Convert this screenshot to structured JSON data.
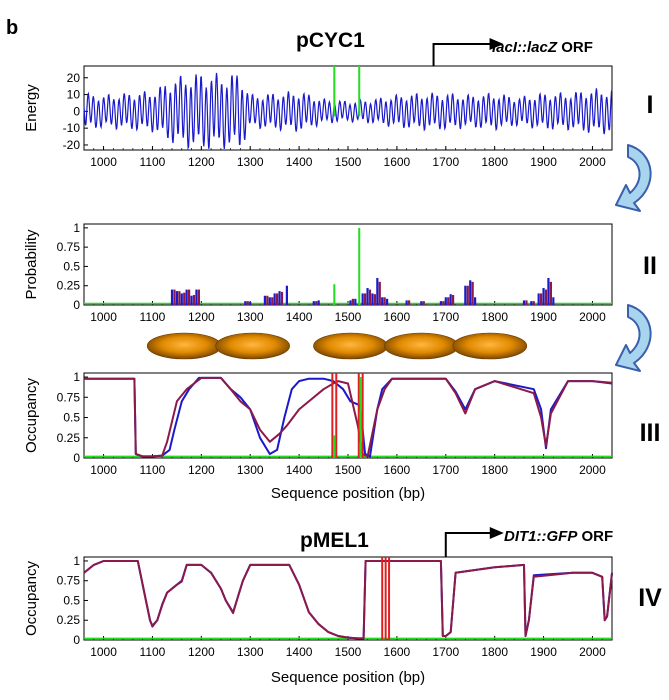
{
  "panel_letter": "b",
  "x_range": [
    960,
    2040
  ],
  "x_ticks": [
    1000,
    1100,
    1200,
    1300,
    1400,
    1500,
    1600,
    1700,
    1800,
    1900,
    2000
  ],
  "colors": {
    "blue": "#1a1acc",
    "purple": "#8b1a4a",
    "green": "#22dd22",
    "red": "#e02020",
    "arrow_dark": "#3a5fae",
    "arrow_light": "#a8d4ee",
    "nucleosome": "#c87800"
  },
  "top_label": {
    "promoter": "pCYC1",
    "orf": "lacI::lacZ ORF",
    "orf_italic": "lacI::lacZ",
    "orf_suffix": " ORF",
    "tss_bp": 1675
  },
  "bottom_label": {
    "promoter": "pMEL1",
    "orf": "DIT1::GFP ORF",
    "orf_italic": "DIT1::GFP",
    "orf_suffix": " ORF",
    "tss_bp": 1700
  },
  "nucleosomes_bp": [
    1165,
    1305,
    1505,
    1650,
    1790
  ],
  "chart_data": [
    {
      "id": "I",
      "type": "line",
      "roman": "I",
      "ylabel": "Energy",
      "xlabel": "",
      "ylim": [
        -23,
        27
      ],
      "y_ticks": [
        20,
        10,
        0,
        -10,
        -20
      ],
      "series": [
        {
          "name": "energy",
          "color": "blue",
          "x": [
            960,
            1000,
            1050,
            1100,
            1150,
            1200,
            1250,
            1280,
            1300,
            1350,
            1400,
            1450,
            1500,
            1550,
            1600,
            1650,
            1700,
            1750,
            1800,
            1850,
            1900,
            1950,
            2000,
            2040
          ],
          "amplitude": [
            9,
            8,
            9,
            10,
            17,
            19,
            18,
            19,
            8,
            9,
            10,
            6,
            5,
            6,
            8,
            9,
            9,
            8,
            9,
            7,
            9,
            9,
            11,
            11
          ],
          "period_bp": 10.5
        }
      ],
      "markers": [
        {
          "x": 1472,
          "color": "green"
        },
        {
          "x": 1523,
          "color": "green"
        }
      ]
    },
    {
      "id": "II",
      "type": "bar",
      "roman": "II",
      "ylabel": "Probability",
      "xlabel": "",
      "ylim": [
        0,
        1.05
      ],
      "y_ticks": [
        1,
        0.75,
        0.5,
        0.25,
        0
      ],
      "y_tick_labels": [
        "1",
        "0.75",
        "0.5",
        "0.25",
        "0"
      ],
      "baseline": {
        "value": 0.02,
        "color": "green"
      },
      "series": [
        {
          "name": "blue",
          "color": "blue",
          "x": [
            1140,
            1150,
            1160,
            1170,
            1180,
            1190,
            1290,
            1300,
            1330,
            1340,
            1350,
            1360,
            1375,
            1430,
            1440,
            1505,
            1515,
            1530,
            1540,
            1550,
            1560,
            1570,
            1580,
            1620,
            1650,
            1690,
            1700,
            1710,
            1740,
            1750,
            1760,
            1860,
            1875,
            1890,
            1900,
            1910,
            1920
          ],
          "values": [
            0.2,
            0.18,
            0.15,
            0.2,
            0.12,
            0.2,
            0.05,
            0.04,
            0.12,
            0.1,
            0.15,
            0.18,
            0.25,
            0.05,
            0.06,
            0.06,
            0.08,
            0.15,
            0.22,
            0.15,
            0.35,
            0.1,
            0.08,
            0.06,
            0.05,
            0.05,
            0.1,
            0.14,
            0.25,
            0.32,
            0.1,
            0.06,
            0.05,
            0.15,
            0.22,
            0.35,
            0.1
          ]
        },
        {
          "name": "purple",
          "color": "purple",
          "x": [
            1145,
            1155,
            1165,
            1175,
            1185,
            1195,
            1295,
            1335,
            1345,
            1355,
            1365,
            1435,
            1510,
            1535,
            1545,
            1555,
            1565,
            1575,
            1625,
            1655,
            1695,
            1705,
            1715,
            1745,
            1755,
            1865,
            1880,
            1895,
            1905,
            1915
          ],
          "values": [
            0.2,
            0.18,
            0.16,
            0.2,
            0.13,
            0.2,
            0.05,
            0.12,
            0.1,
            0.15,
            0.17,
            0.05,
            0.08,
            0.15,
            0.2,
            0.14,
            0.3,
            0.1,
            0.06,
            0.05,
            0.05,
            0.1,
            0.13,
            0.25,
            0.3,
            0.06,
            0.05,
            0.15,
            0.2,
            0.3
          ]
        },
        {
          "name": "green",
          "color": "green",
          "x": [
            1472,
            1523
          ],
          "values": [
            0.27,
            1.0
          ]
        }
      ]
    },
    {
      "id": "III",
      "type": "line",
      "roman": "III",
      "ylabel": "Occupancy",
      "xlabel": "Sequence position (bp)",
      "ylim": [
        0,
        1.05
      ],
      "y_ticks": [
        1,
        0.75,
        0.5,
        0.25,
        0
      ],
      "y_tick_labels": [
        "1",
        "0.75",
        "0.5",
        "0.25",
        "0"
      ],
      "baseline": {
        "value": 0.02,
        "color": "green"
      },
      "series": [
        {
          "name": "blue",
          "color": "blue",
          "x": [
            960,
            1000,
            1050,
            1063,
            1066,
            1080,
            1100,
            1120,
            1135,
            1145,
            1160,
            1175,
            1195,
            1240,
            1260,
            1280,
            1300,
            1320,
            1340,
            1355,
            1370,
            1385,
            1400,
            1420,
            1450,
            1470,
            1490,
            1505,
            1525,
            1535,
            1545,
            1560,
            1570,
            1590,
            1700,
            1720,
            1740,
            1760,
            1800,
            1880,
            1895,
            1905,
            1915,
            1950,
            2000,
            2040
          ],
          "values": [
            0.98,
            0.98,
            0.98,
            0.98,
            0.05,
            0.02,
            0.02,
            0.03,
            0.1,
            0.35,
            0.7,
            0.85,
            0.99,
            0.99,
            0.85,
            0.75,
            0.6,
            0.25,
            0.05,
            0.1,
            0.5,
            0.85,
            0.95,
            0.98,
            0.98,
            0.95,
            0.85,
            0.7,
            0.65,
            0.05,
            0.02,
            0.6,
            0.85,
            0.98,
            0.98,
            0.82,
            0.6,
            0.85,
            0.95,
            0.85,
            0.6,
            0.12,
            0.6,
            0.95,
            0.95,
            0.92
          ]
        },
        {
          "name": "purple",
          "color": "purple",
          "x": [
            960,
            1000,
            1050,
            1063,
            1066,
            1080,
            1100,
            1120,
            1130,
            1140,
            1150,
            1170,
            1200,
            1240,
            1260,
            1280,
            1300,
            1320,
            1340,
            1360,
            1375,
            1400,
            1450,
            1470,
            1480,
            1500,
            1520,
            1530,
            1540,
            1560,
            1575,
            1590,
            1700,
            1720,
            1740,
            1760,
            1800,
            1880,
            1895,
            1905,
            1915,
            1950,
            2000,
            2040
          ],
          "values": [
            0.98,
            0.98,
            0.98,
            0.98,
            0.05,
            0.02,
            0.02,
            0.03,
            0.2,
            0.45,
            0.7,
            0.85,
            0.99,
            0.99,
            0.85,
            0.7,
            0.6,
            0.35,
            0.2,
            0.3,
            0.4,
            0.6,
            0.85,
            0.92,
            0.95,
            0.92,
            0.4,
            0.05,
            0.02,
            0.6,
            0.85,
            0.98,
            0.98,
            0.8,
            0.55,
            0.85,
            0.95,
            0.8,
            0.5,
            0.15,
            0.55,
            0.95,
            0.95,
            0.93
          ]
        }
      ],
      "markers": [
        {
          "x": 1468,
          "color": "red"
        },
        {
          "x": 1476,
          "color": "red"
        },
        {
          "x": 1522,
          "color": "red"
        },
        {
          "x": 1530,
          "color": "red"
        },
        {
          "x": 1472,
          "color": "green",
          "height": 0.28
        },
        {
          "x": 1526,
          "color": "green",
          "height": 1.0
        }
      ]
    },
    {
      "id": "IV",
      "type": "line",
      "roman": "IV",
      "ylabel": "Occupancy",
      "xlabel": "Sequence position (bp)",
      "ylim": [
        0,
        1.05
      ],
      "y_ticks": [
        1,
        0.75,
        0.5,
        0.25,
        0
      ],
      "y_tick_labels": [
        "1",
        "0.75",
        "0.5",
        "0.25",
        "0"
      ],
      "baseline": {
        "value": 0.02,
        "color": "green"
      },
      "series": [
        {
          "name": "blue",
          "color": "blue",
          "x": [
            960,
            980,
            1000,
            1070,
            1085,
            1095,
            1100,
            1110,
            1120,
            1130,
            1150,
            1160,
            1170,
            1200,
            1210,
            1220,
            1240,
            1250,
            1265,
            1275,
            1285,
            1300,
            1380,
            1400,
            1420,
            1440,
            1460,
            1480,
            1500,
            1520,
            1532,
            1536,
            1560,
            1690,
            1694,
            1700,
            1710,
            1720,
            1800,
            1860,
            1863,
            1870,
            1880,
            1960,
            2000,
            2020,
            2025,
            2030,
            2040
          ],
          "values": [
            0.85,
            0.95,
            1.0,
            1.0,
            0.55,
            0.25,
            0.18,
            0.25,
            0.45,
            0.6,
            0.7,
            0.75,
            0.95,
            0.95,
            0.9,
            0.85,
            0.65,
            0.5,
            0.35,
            0.55,
            0.75,
            0.95,
            0.95,
            0.7,
            0.35,
            0.2,
            0.1,
            0.05,
            0.03,
            0.02,
            0.02,
            1.0,
            1.0,
            1.0,
            0.05,
            0.05,
            0.1,
            0.85,
            0.92,
            0.95,
            0.05,
            0.25,
            0.82,
            0.85,
            0.85,
            0.8,
            0.25,
            0.3,
            0.85
          ]
        },
        {
          "name": "purple",
          "color": "purple",
          "x": [
            960,
            980,
            1000,
            1070,
            1085,
            1095,
            1100,
            1110,
            1120,
            1130,
            1150,
            1160,
            1170,
            1200,
            1210,
            1220,
            1240,
            1250,
            1265,
            1275,
            1285,
            1300,
            1380,
            1400,
            1420,
            1440,
            1460,
            1480,
            1500,
            1520,
            1532,
            1536,
            1560,
            1690,
            1694,
            1700,
            1710,
            1720,
            1800,
            1860,
            1863,
            1870,
            1880,
            1960,
            2000,
            2020,
            2025,
            2030,
            2040
          ],
          "values": [
            0.85,
            0.95,
            1.0,
            1.0,
            0.55,
            0.25,
            0.17,
            0.25,
            0.44,
            0.6,
            0.7,
            0.74,
            0.95,
            0.95,
            0.9,
            0.85,
            0.65,
            0.5,
            0.34,
            0.55,
            0.75,
            0.95,
            0.95,
            0.7,
            0.35,
            0.2,
            0.1,
            0.05,
            0.03,
            0.02,
            0.02,
            1.0,
            1.0,
            1.0,
            0.05,
            0.05,
            0.1,
            0.85,
            0.92,
            0.95,
            0.05,
            0.25,
            0.8,
            0.85,
            0.85,
            0.8,
            0.25,
            0.3,
            0.84
          ]
        }
      ],
      "markers": [
        {
          "x": 1570,
          "color": "red"
        },
        {
          "x": 1577,
          "color": "red"
        },
        {
          "x": 1584,
          "color": "red"
        }
      ]
    }
  ]
}
